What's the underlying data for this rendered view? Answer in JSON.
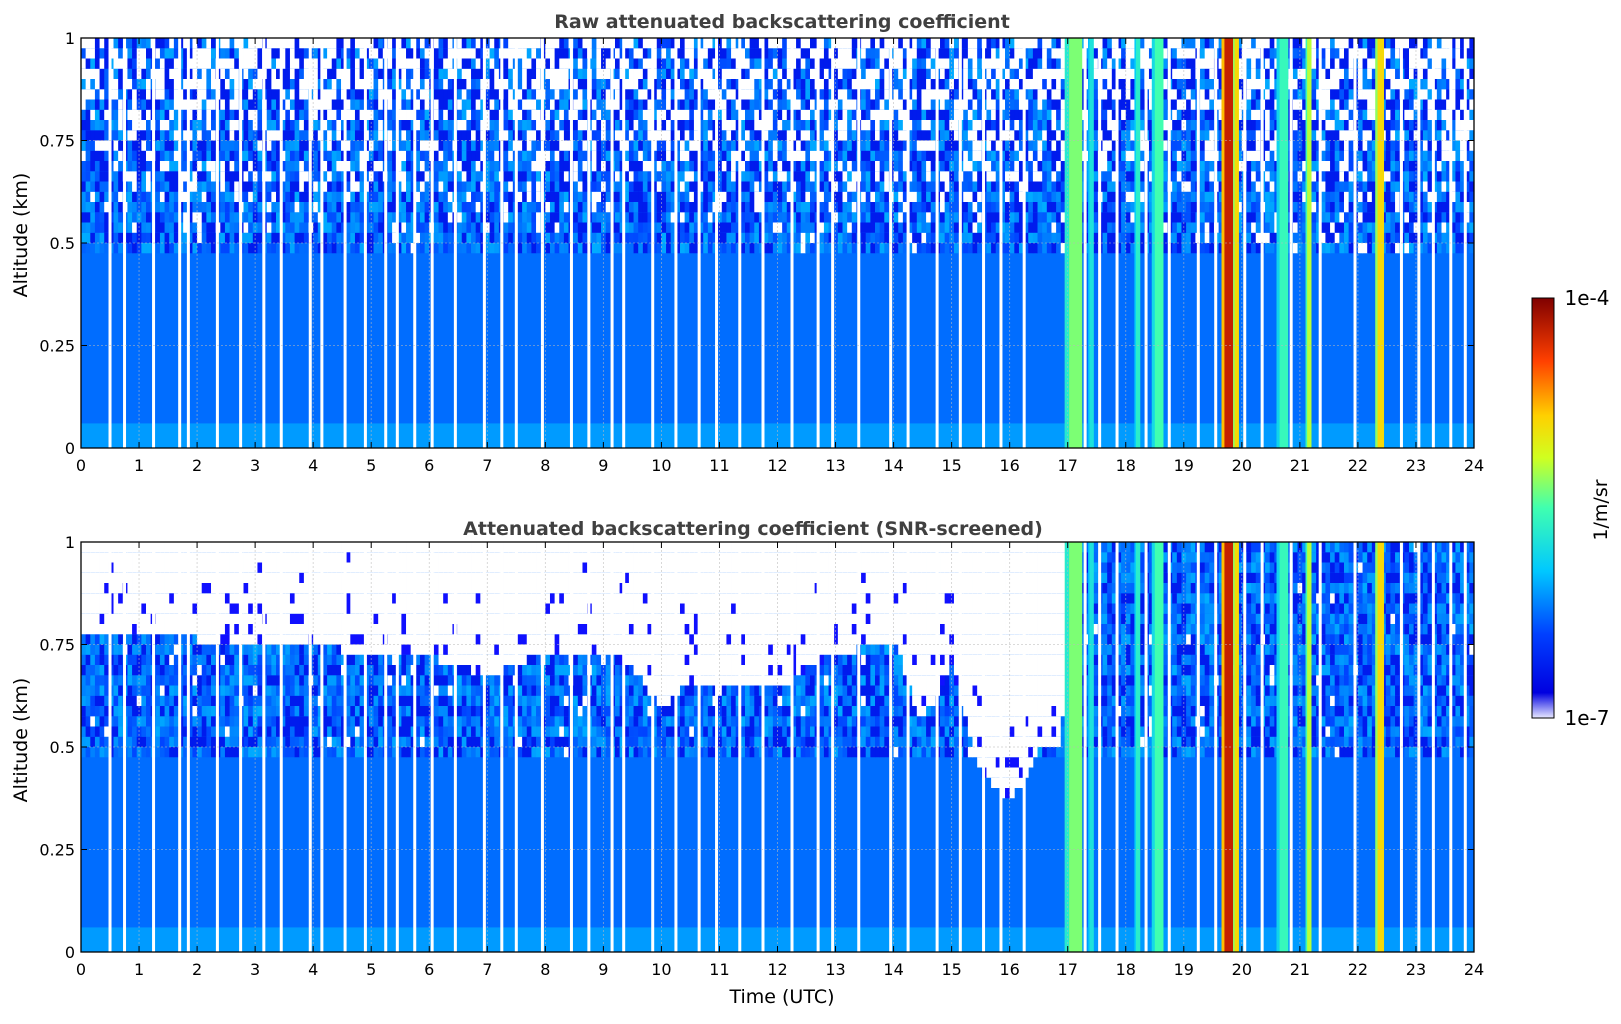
{
  "chart_data": [
    {
      "type": "heatmap",
      "title": "Raw attenuated backscattering coefficient",
      "xlabel": "",
      "ylabel": "Altitude (km)",
      "xlim": [
        0,
        24
      ],
      "ylim": [
        0,
        1
      ],
      "x_ticks": [
        "0",
        "1",
        "2",
        "3",
        "4",
        "5",
        "6",
        "7",
        "8",
        "9",
        "10",
        "11",
        "12",
        "13",
        "14",
        "15",
        "16",
        "17",
        "18",
        "19",
        "20",
        "21",
        "22",
        "23",
        "24"
      ],
      "y_ticks": [
        "0",
        "0.25",
        "0.5",
        "0.75",
        "1"
      ],
      "grid": true,
      "colorscale": "log",
      "background_level": 0.25,
      "noise_top": 1.0,
      "cloud_bands": [
        {
          "start": 16.95,
          "end": 17.25,
          "level": 0.55
        },
        {
          "start": 17.35,
          "end": 17.45,
          "level": 0.42
        },
        {
          "start": 18.15,
          "end": 18.25,
          "level": 0.45
        },
        {
          "start": 18.45,
          "end": 18.65,
          "level": 0.5
        },
        {
          "start": 19.65,
          "end": 19.85,
          "level": 0.92
        },
        {
          "start": 19.85,
          "end": 19.95,
          "level": 0.7
        },
        {
          "start": 20.6,
          "end": 20.8,
          "level": 0.48
        },
        {
          "start": 21.1,
          "end": 21.2,
          "level": 0.6
        },
        {
          "start": 22.3,
          "end": 22.45,
          "level": 0.7
        }
      ]
    },
    {
      "type": "heatmap",
      "title": "Attenuated backscattering coefficient (SNR-screened)",
      "xlabel": "Time (UTC)",
      "ylabel": "Altitude (km)",
      "xlim": [
        0,
        24
      ],
      "ylim": [
        0,
        1
      ],
      "x_ticks": [
        "0",
        "1",
        "2",
        "3",
        "4",
        "5",
        "6",
        "7",
        "8",
        "9",
        "10",
        "11",
        "12",
        "13",
        "14",
        "15",
        "16",
        "17",
        "18",
        "19",
        "20",
        "21",
        "22",
        "23",
        "24"
      ],
      "y_ticks": [
        "0",
        "0.25",
        "0.5",
        "0.75",
        "1"
      ],
      "grid": true,
      "colorscale": "log",
      "background_level": 0.25,
      "signal_top_km": [
        {
          "t": 0,
          "h": 0.76
        },
        {
          "t": 2,
          "h": 0.75
        },
        {
          "t": 4,
          "h": 0.73
        },
        {
          "t": 6,
          "h": 0.71
        },
        {
          "t": 7,
          "h": 0.66
        },
        {
          "t": 8,
          "h": 0.72
        },
        {
          "t": 9,
          "h": 0.72
        },
        {
          "t": 9.5,
          "h": 0.68
        },
        {
          "t": 10,
          "h": 0.58
        },
        {
          "t": 10.5,
          "h": 0.65
        },
        {
          "t": 11,
          "h": 0.64
        },
        {
          "t": 12,
          "h": 0.63
        },
        {
          "t": 12.8,
          "h": 0.7
        },
        {
          "t": 13.5,
          "h": 0.73
        },
        {
          "t": 14,
          "h": 0.75
        },
        {
          "t": 14.5,
          "h": 0.55
        },
        {
          "t": 15,
          "h": 0.68
        },
        {
          "t": 15.5,
          "h": 0.42
        },
        {
          "t": 16,
          "h": 0.35
        },
        {
          "t": 16.3,
          "h": 0.42
        },
        {
          "t": 16.6,
          "h": 0.5
        },
        {
          "t": 16.9,
          "h": 0.48
        },
        {
          "t": 17.0,
          "h": 1.0
        },
        {
          "t": 24,
          "h": 1.0
        }
      ],
      "cloud_bands": [
        {
          "start": 16.95,
          "end": 17.25,
          "level": 0.55
        },
        {
          "start": 17.35,
          "end": 17.45,
          "level": 0.42
        },
        {
          "start": 18.15,
          "end": 18.25,
          "level": 0.45
        },
        {
          "start": 18.45,
          "end": 18.65,
          "level": 0.5
        },
        {
          "start": 19.65,
          "end": 19.85,
          "level": 0.92
        },
        {
          "start": 19.85,
          "end": 19.95,
          "level": 0.7
        },
        {
          "start": 20.6,
          "end": 20.8,
          "level": 0.48
        },
        {
          "start": 21.1,
          "end": 21.2,
          "level": 0.6
        },
        {
          "start": 22.3,
          "end": 22.45,
          "level": 0.7
        }
      ]
    }
  ],
  "colorbar": {
    "label": "1/m/sr",
    "max_label": "1e-4",
    "min_label": "1e-7"
  },
  "gap_times": [
    0.5,
    0.75,
    1.25,
    1.7,
    1.85,
    2.35,
    2.75,
    3.15,
    3.45,
    3.95,
    4.15,
    4.55,
    4.9,
    5.25,
    5.45,
    5.75,
    6.05,
    6.45,
    6.95,
    7.25,
    7.5,
    7.95,
    8.45,
    8.75,
    9.15,
    9.35,
    9.85,
    10.25,
    10.65,
    10.95,
    11.35,
    11.75,
    12.25,
    12.7,
    12.95,
    13.4,
    13.95,
    14.25,
    14.75,
    15.15,
    15.55,
    15.85,
    16.25,
    17.3,
    17.55,
    17.85,
    18.35,
    18.75,
    19.25,
    19.55,
    20.05,
    20.35,
    20.85,
    21.35,
    21.95,
    22.75,
    23.05,
    23.3,
    23.6,
    23.85
  ]
}
